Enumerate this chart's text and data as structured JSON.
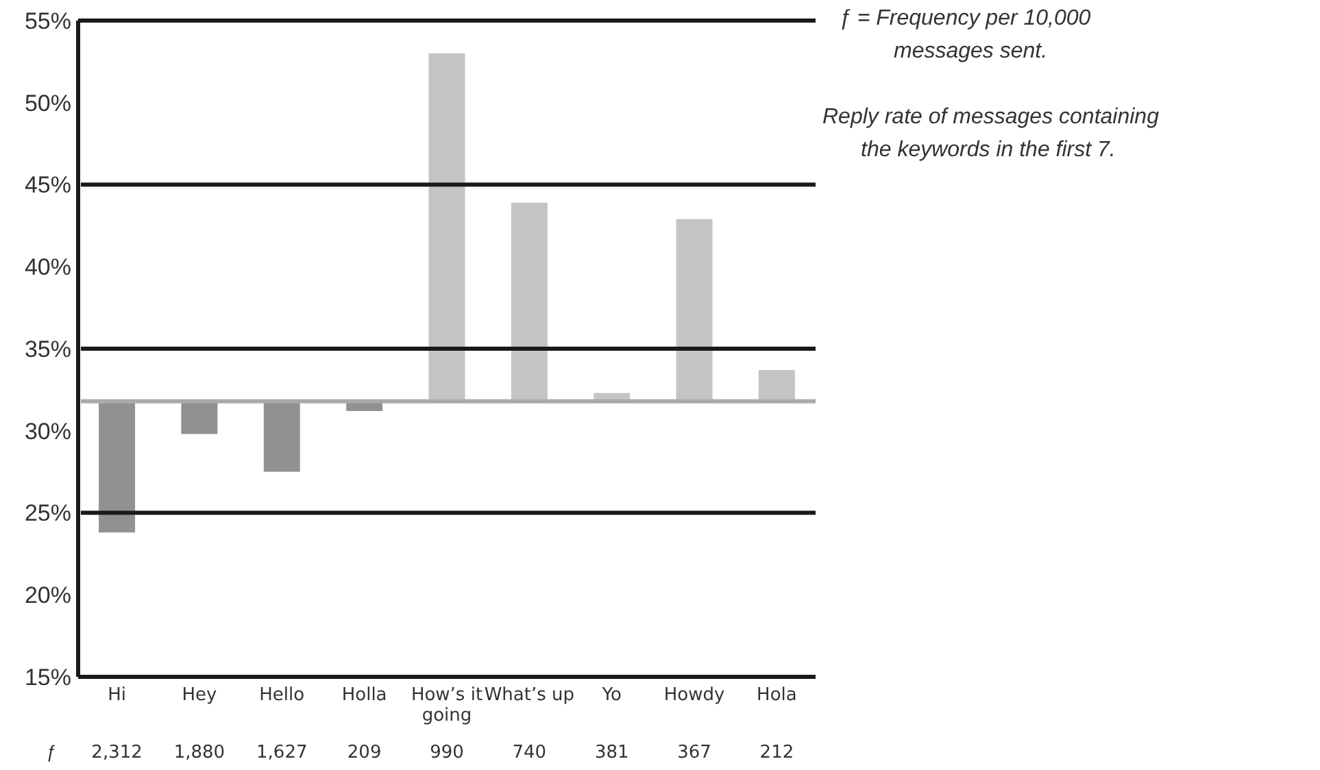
{
  "chart_data": {
    "type": "bar",
    "categories": [
      "Hi",
      "Hey",
      "Hello",
      "Holla",
      "How’s it going",
      "What’s up",
      "Yo",
      "Howdy",
      "Hola"
    ],
    "base": [
      31.8,
      31.8,
      31.8,
      31.8,
      31.8,
      31.8,
      31.8,
      31.8,
      31.8
    ],
    "values": [
      -8.0,
      -2.0,
      -4.3,
      -0.6,
      21.2,
      12.1,
      0.5,
      11.1,
      1.9
    ],
    "colors": [
      "#909193",
      "#909193",
      "#909193",
      "#909193",
      "#c3c4c6",
      "#c3c4c6",
      "#c3c4c6",
      "#c3c4c6",
      "#c3c4c6"
    ],
    "ylim": [
      15,
      55
    ],
    "yticks": [
      {
        "value": 15,
        "label": "15%"
      },
      {
        "value": 20,
        "label": "20%"
      },
      {
        "value": 25,
        "label": "25%"
      },
      {
        "value": 30,
        "label": "30%"
      },
      {
        "value": 35,
        "label": "35%"
      },
      {
        "value": 40,
        "label": "40%"
      },
      {
        "value": 45,
        "label": "45%"
      },
      {
        "value": 50,
        "label": "50%"
      },
      {
        "value": 55,
        "label": "55%"
      }
    ],
    "grid": false,
    "ref_lines": [
      {
        "axis": "y",
        "value": 25,
        "color": "#1a1a1a"
      },
      {
        "axis": "y",
        "value": 35,
        "color": "#1a1a1a"
      },
      {
        "axis": "y",
        "value": 45,
        "color": "#1a1a1a"
      },
      {
        "axis": "y",
        "value": 31.8,
        "color": "#a9aaac"
      }
    ],
    "annotations": [
      "ƒ = Frequency per 10,000 messages sent.",
      "Reply rate of messages containing the keywords in the first 7.",
      "ƒ",
      "2,312",
      "1,880",
      "1,627",
      "209",
      "990",
      "740",
      "381",
      "367",
      "212"
    ]
  }
}
